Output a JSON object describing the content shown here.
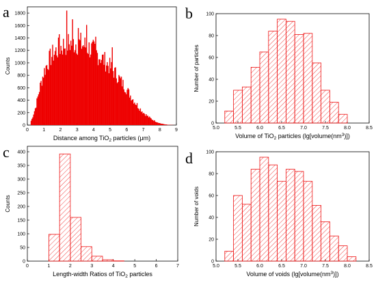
{
  "chart_data": [
    {
      "panel": "a",
      "type": "bar",
      "fill": "solid",
      "color": "#ee0000",
      "xlabel_prefix": "Distance among TiO",
      "xlabel_sub": "2",
      "xlabel_suffix": " particles (μm)",
      "ylabel": "Counts",
      "xlim": [
        0,
        9
      ],
      "ylim": [
        0,
        1900
      ],
      "xticks": [
        0,
        1,
        2,
        3,
        4,
        5,
        6,
        7,
        8,
        9
      ],
      "yticks": [
        0,
        200,
        400,
        600,
        800,
        1000,
        1200,
        1400,
        1600,
        1800
      ],
      "bin_width": 0.05,
      "x": [
        0.0,
        0.25,
        0.5,
        0.75,
        1.0,
        1.25,
        1.5,
        1.75,
        2.0,
        2.25,
        2.5,
        2.75,
        3.0,
        3.25,
        3.5,
        3.75,
        4.0,
        4.25,
        4.5,
        4.75,
        5.0,
        5.25,
        5.5,
        5.75,
        6.0,
        6.25,
        6.5,
        6.75,
        7.0,
        7.25,
        7.5,
        7.75,
        8.0,
        8.25,
        8.5,
        8.75,
        9.0
      ],
      "values": [
        0,
        80,
        300,
        620,
        880,
        1050,
        1160,
        1230,
        1290,
        1330,
        1350,
        1360,
        1355,
        1340,
        1310,
        1270,
        1230,
        1170,
        1110,
        1040,
        960,
        880,
        790,
        690,
        590,
        480,
        380,
        290,
        210,
        150,
        100,
        60,
        30,
        15,
        5,
        2,
        0
      ],
      "peaks": [
        {
          "x": 2.35,
          "y": 1840
        },
        {
          "x": 2.7,
          "y": 1700
        },
        {
          "x": 3.55,
          "y": 1610
        },
        {
          "x": 3.05,
          "y": 1560
        },
        {
          "x": 1.9,
          "y": 1460
        },
        {
          "x": 4.1,
          "y": 1420
        },
        {
          "x": 5.1,
          "y": 1250
        }
      ]
    },
    {
      "panel": "b",
      "type": "bar",
      "fill": "hatched",
      "color": "#ee1111",
      "xlabel": "Volume of TiO",
      "xlabel_sub": "2",
      "xlabel_mid": " particles (lg[volume(nm",
      "xlabel_sup": "3",
      "xlabel_end": ")])",
      "ylabel": "Number of particles",
      "xlim": [
        5.0,
        8.5
      ],
      "ylim": [
        0,
        100
      ],
      "xticks": [
        "5.0",
        "5.5",
        "6.0",
        "6.5",
        "7.0",
        "7.5",
        "8.0",
        "8.5"
      ],
      "yticks": [
        0,
        20,
        40,
        60,
        80,
        100
      ],
      "bin_width": 0.2,
      "bin_starts": [
        5.2,
        5.4,
        5.6,
        5.8,
        6.0,
        6.2,
        6.4,
        6.6,
        6.8,
        7.0,
        7.2,
        7.4,
        7.6,
        7.8
      ],
      "values": [
        11,
        30,
        33,
        51,
        65,
        84,
        95,
        93,
        81,
        82,
        55,
        30,
        19,
        8
      ]
    },
    {
      "panel": "c",
      "type": "bar",
      "fill": "hatched",
      "color": "#ee1111",
      "xlabel_prefix": "Length-width Ratios of TiO",
      "xlabel_sub": "2",
      "xlabel_suffix": " particles",
      "ylabel": "Counts",
      "xlim": [
        0,
        7
      ],
      "ylim": [
        0,
        420
      ],
      "xticks": [
        0,
        1,
        2,
        3,
        4,
        5,
        6,
        7
      ],
      "yticks": [
        0,
        50,
        100,
        150,
        200,
        250,
        300,
        350,
        400
      ],
      "bin_width": 0.5,
      "bin_starts": [
        1.0,
        1.5,
        2.0,
        2.5,
        3.0,
        3.5,
        4.0
      ],
      "values": [
        98,
        392,
        160,
        53,
        18,
        5,
        1
      ]
    },
    {
      "panel": "d",
      "type": "bar",
      "fill": "hatched",
      "color": "#ee1111",
      "xlabel": "Volume of voids (lg[volume(nm",
      "xlabel_sup": "3",
      "xlabel_end": ")])",
      "ylabel": "Number of voids",
      "xlim": [
        5.0,
        8.5
      ],
      "ylim": [
        0,
        100
      ],
      "xticks": [
        "5.0",
        "5.5",
        "6.0",
        "6.5",
        "7.0",
        "7.5",
        "8.0",
        "8.5"
      ],
      "yticks": [
        0,
        20,
        40,
        60,
        80,
        100
      ],
      "bin_width": 0.2,
      "bin_starts": [
        5.2,
        5.4,
        5.6,
        5.8,
        6.0,
        6.2,
        6.4,
        6.6,
        6.8,
        7.0,
        7.2,
        7.4,
        7.6,
        7.8,
        8.0
      ],
      "values": [
        9,
        60,
        52,
        84,
        95,
        88,
        73,
        84,
        82,
        73,
        51,
        36,
        23,
        14,
        4
      ]
    }
  ]
}
